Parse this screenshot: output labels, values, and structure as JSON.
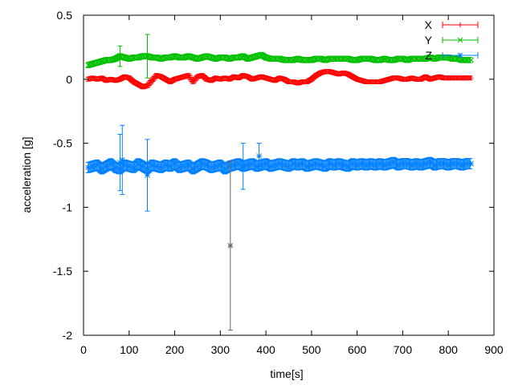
{
  "chart_data": {
    "type": "scatter",
    "title": "",
    "xlabel": "time[s]",
    "ylabel": "acceleration [g]",
    "xlim": [
      0,
      900
    ],
    "ylim": [
      -2,
      0.5
    ],
    "xticks": [
      "0",
      "100",
      "200",
      "300",
      "400",
      "500",
      "600",
      "700",
      "800",
      "900"
    ],
    "yticks": [
      "0.5",
      "0",
      "-0.5",
      "-1",
      "-1.5",
      "-2"
    ],
    "grid": false,
    "legend_position": "top-right",
    "x_start": 10,
    "x_step": 10,
    "series": [
      {
        "name": "X",
        "color": "#ff0000",
        "marker": "plus",
        "err": 0.015,
        "values": [
          0.0,
          0.01,
          0.0,
          0.01,
          -0.01,
          0.0,
          -0.01,
          0.0,
          0.02,
          0.01,
          -0.02,
          -0.04,
          -0.06,
          -0.05,
          -0.01,
          0.03,
          0.02,
          0.0,
          -0.02,
          0.0,
          0.01,
          0.02,
          0.03,
          -0.02,
          0.02,
          0.03,
          0.0,
          -0.01,
          0.01,
          0.0,
          0.01,
          0.0,
          0.02,
          0.01,
          0.03,
          0.02,
          0.0,
          0.01,
          0.02,
          0.01,
          0.0,
          -0.01,
          0.01,
          0.0,
          -0.02,
          -0.02,
          -0.03,
          -0.02,
          -0.02,
          0.0,
          0.03,
          0.05,
          0.06,
          0.06,
          0.05,
          0.04,
          0.05,
          0.04,
          0.02,
          0.0,
          -0.01,
          -0.02,
          -0.02,
          -0.02,
          -0.02,
          -0.01,
          0.0,
          0.01,
          0.01,
          0.0,
          0.0,
          0.01,
          0.0,
          0.0,
          0.02,
          0.0,
          0.01,
          0.02,
          0.01,
          0.01,
          0.01,
          0.01,
          0.01,
          0.01,
          0.01
        ],
        "large_errors": []
      },
      {
        "name": "Y",
        "color": "#00c000",
        "marker": "cross",
        "err": 0.02,
        "values": [
          0.11,
          0.12,
          0.13,
          0.14,
          0.15,
          0.15,
          0.16,
          0.18,
          0.17,
          0.16,
          0.17,
          0.17,
          0.18,
          0.18,
          0.17,
          0.17,
          0.16,
          0.17,
          0.17,
          0.18,
          0.17,
          0.17,
          0.18,
          0.17,
          0.16,
          0.17,
          0.18,
          0.17,
          0.16,
          0.17,
          0.17,
          0.16,
          0.17,
          0.17,
          0.18,
          0.16,
          0.17,
          0.18,
          0.19,
          0.17,
          0.16,
          0.16,
          0.16,
          0.15,
          0.15,
          0.15,
          0.16,
          0.15,
          0.15,
          0.15,
          0.16,
          0.16,
          0.15,
          0.16,
          0.16,
          0.16,
          0.16,
          0.16,
          0.15,
          0.15,
          0.16,
          0.16,
          0.16,
          0.15,
          0.15,
          0.16,
          0.15,
          0.15,
          0.16,
          0.16,
          0.15,
          0.16,
          0.16,
          0.16,
          0.16,
          0.17,
          0.16,
          0.17,
          0.17,
          0.17,
          0.16,
          0.16,
          0.15,
          0.15,
          0.15
        ],
        "large_errors": [
          [
            140,
            0.18,
            0.17
          ],
          [
            80,
            0.18,
            0.08
          ]
        ]
      },
      {
        "name": "Z",
        "color": "#0080ff",
        "marker": "star",
        "err": 0.04,
        "values": [
          -0.69,
          -0.68,
          -0.67,
          -0.7,
          -0.68,
          -0.66,
          -0.69,
          -0.7,
          -0.67,
          -0.68,
          -0.69,
          -0.66,
          -0.68,
          -0.7,
          -0.67,
          -0.68,
          -0.69,
          -0.67,
          -0.68,
          -0.66,
          -0.69,
          -0.68,
          -0.67,
          -0.7,
          -0.68,
          -0.66,
          -0.67,
          -0.69,
          -0.68,
          -0.67,
          -0.7,
          -0.68,
          -0.67,
          -0.66,
          -0.68,
          -0.67,
          -0.66,
          -0.68,
          -0.67,
          -0.66,
          -0.68,
          -0.67,
          -0.66,
          -0.67,
          -0.68,
          -0.66,
          -0.67,
          -0.66,
          -0.68,
          -0.67,
          -0.66,
          -0.67,
          -0.68,
          -0.66,
          -0.67,
          -0.66,
          -0.67,
          -0.68,
          -0.66,
          -0.67,
          -0.66,
          -0.67,
          -0.66,
          -0.67,
          -0.66,
          -0.67,
          -0.66,
          -0.65,
          -0.67,
          -0.66,
          -0.66,
          -0.67,
          -0.66,
          -0.67,
          -0.66,
          -0.65,
          -0.67,
          -0.66,
          -0.66,
          -0.67,
          -0.66,
          -0.66,
          -0.67,
          -0.66,
          -0.66
        ],
        "large_errors": [
          [
            322,
            -1.3,
            0.66
          ],
          [
            140,
            -0.75,
            0.28
          ],
          [
            85,
            -0.63,
            0.27
          ],
          [
            80,
            -0.65,
            0.22
          ],
          [
            350,
            -0.68,
            0.18
          ],
          [
            385,
            -0.6,
            0.1
          ]
        ]
      }
    ]
  }
}
